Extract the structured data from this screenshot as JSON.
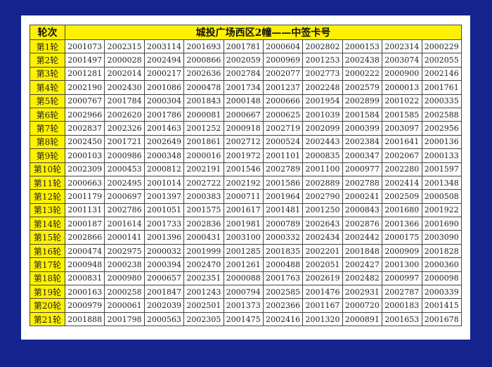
{
  "header": {
    "round_label": "轮次",
    "title": "城投广场西区2幢——中签卡号"
  },
  "colors": {
    "background": "#15238e",
    "highlight": "#fff200"
  },
  "rows": [
    {
      "round": "第1轮",
      "values": [
        "2001073",
        "2002315",
        "2003114",
        "2001693",
        "2001781",
        "2000604",
        "2002802",
        "2000153",
        "2002314",
        "2000229"
      ]
    },
    {
      "round": "第2轮",
      "values": [
        "2001497",
        "2000028",
        "2002494",
        "2000866",
        "2002059",
        "2000969",
        "2001253",
        "2002438",
        "2003074",
        "2002055"
      ]
    },
    {
      "round": "第3轮",
      "values": [
        "2001281",
        "2002014",
        "2000217",
        "2002636",
        "2002784",
        "2002077",
        "2002773",
        "2000222",
        "2000900",
        "2002146"
      ]
    },
    {
      "round": "第4轮",
      "values": [
        "2002190",
        "2002430",
        "2001086",
        "2000478",
        "2001734",
        "2001237",
        "2002248",
        "2002579",
        "2000013",
        "2001761"
      ]
    },
    {
      "round": "第5轮",
      "values": [
        "2000767",
        "2001784",
        "2000304",
        "2001843",
        "2000148",
        "2000666",
        "2001954",
        "2002899",
        "2001022",
        "2000335"
      ]
    },
    {
      "round": "第6轮",
      "values": [
        "2002966",
        "2002620",
        "2001786",
        "2000081",
        "2000667",
        "2000625",
        "2001039",
        "2001584",
        "2001585",
        "2002588"
      ]
    },
    {
      "round": "第7轮",
      "values": [
        "2002837",
        "2002326",
        "2001463",
        "2001252",
        "2000918",
        "2002719",
        "2002099",
        "2000399",
        "2003097",
        "2002956"
      ]
    },
    {
      "round": "第8轮",
      "values": [
        "2002450",
        "2001721",
        "2002649",
        "2001861",
        "2002712",
        "2000524",
        "2002443",
        "2002384",
        "2001641",
        "2000136"
      ]
    },
    {
      "round": "第9轮",
      "values": [
        "2000103",
        "2000986",
        "2000348",
        "2000016",
        "2001972",
        "2001101",
        "2000835",
        "2000347",
        "2002067",
        "2000133"
      ]
    },
    {
      "round": "第10轮",
      "values": [
        "2002309",
        "2000453",
        "2000812",
        "2002191",
        "2001546",
        "2002789",
        "2001100",
        "2000977",
        "2002280",
        "2001597"
      ]
    },
    {
      "round": "第11轮",
      "values": [
        "2000663",
        "2002495",
        "2001014",
        "2002722",
        "2002192",
        "2001586",
        "2002889",
        "2002788",
        "2002414",
        "2001348"
      ]
    },
    {
      "round": "第12轮",
      "values": [
        "2001179",
        "2000697",
        "2001397",
        "2000383",
        "2000711",
        "2001964",
        "2002790",
        "2000241",
        "2002509",
        "2000508"
      ]
    },
    {
      "round": "第13轮",
      "values": [
        "2001131",
        "2002786",
        "2001051",
        "2001575",
        "2001617",
        "2001481",
        "2001250",
        "2000843",
        "2001680",
        "2001922"
      ]
    },
    {
      "round": "第14轮",
      "values": [
        "2000187",
        "2001614",
        "2001733",
        "2002836",
        "2001981",
        "2000789",
        "2002643",
        "2002876",
        "2001366",
        "2001690"
      ]
    },
    {
      "round": "第15轮",
      "values": [
        "2002866",
        "2000141",
        "2001396",
        "2000431",
        "2003100",
        "2000332",
        "2002434",
        "2002442",
        "2000175",
        "2003090"
      ]
    },
    {
      "round": "第16轮",
      "values": [
        "2000474",
        "2002975",
        "2000032",
        "2001999",
        "2001285",
        "2001835",
        "2002201",
        "2001848",
        "2000909",
        "2001828"
      ]
    },
    {
      "round": "第17轮",
      "values": [
        "2000948",
        "2000238",
        "2000394",
        "2002470",
        "2001261",
        "2000488",
        "2002051",
        "2002427",
        "2001300",
        "2000360"
      ]
    },
    {
      "round": "第18轮",
      "values": [
        "2000831",
        "2000980",
        "2000657",
        "2002351",
        "2000088",
        "2001763",
        "2002619",
        "2002482",
        "2000997",
        "2000098"
      ]
    },
    {
      "round": "第19轮",
      "values": [
        "2000163",
        "2000258",
        "2001847",
        "2001243",
        "2000794",
        "2002585",
        "2001476",
        "2002931",
        "2002787",
        "2000339"
      ]
    },
    {
      "round": "第20轮",
      "values": [
        "2000979",
        "2000061",
        "2002039",
        "2002501",
        "2001373",
        "2002366",
        "2001167",
        "2000720",
        "2000183",
        "2001415"
      ]
    },
    {
      "round": "第21轮",
      "values": [
        "2001888",
        "2001798",
        "2000563",
        "2002305",
        "2001475",
        "2002416",
        "2001320",
        "2000891",
        "2001653",
        "2001678"
      ]
    }
  ]
}
